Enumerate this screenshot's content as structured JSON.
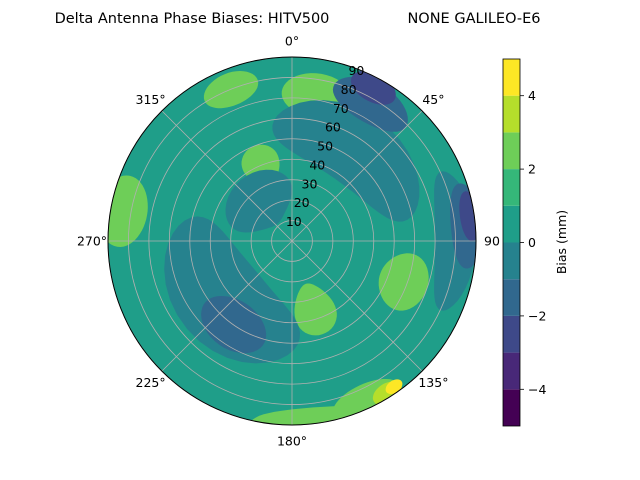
{
  "chart_data": {
    "type": "polar-contour",
    "title_left": "Delta Antenna Phase Biases: HITV500",
    "title_right": "NONE GALILEO-E6",
    "angular_ticks": [
      {
        "deg": 0,
        "label": "0°"
      },
      {
        "deg": 45,
        "label": "45°"
      },
      {
        "deg": 90,
        "label": "90"
      },
      {
        "deg": 135,
        "label": "135°"
      },
      {
        "deg": 180,
        "label": "180°"
      },
      {
        "deg": 225,
        "label": "225°"
      },
      {
        "deg": 270,
        "label": "270°"
      },
      {
        "deg": 315,
        "label": "315°"
      }
    ],
    "radial_ticks": [
      10,
      20,
      30,
      40,
      50,
      60,
      70,
      80,
      90
    ],
    "radial_range": [
      0,
      90
    ],
    "colorbar": {
      "label": "Bias (mm)",
      "ticks": [
        -4,
        -2,
        0,
        2,
        4
      ],
      "range": [
        -5,
        5
      ],
      "levels": [
        -5,
        -4,
        -3,
        -2,
        -1,
        0,
        1,
        2,
        3,
        4,
        5
      ],
      "colors": [
        "#440154",
        "#482878",
        "#3e4989",
        "#31688e",
        "#26828e",
        "#1f9e89",
        "#35b779",
        "#6ece58",
        "#b5de2b",
        "#fde725"
      ]
    },
    "regions": [
      {
        "level": 2,
        "az": 10,
        "r": 72,
        "ra": 14,
        "rr": 11
      },
      {
        "level": 2,
        "az": 338,
        "r": 80,
        "ra": 10,
        "rr": 8
      },
      {
        "level": 2,
        "az": 280,
        "r": 84,
        "ra": 12,
        "rr": 12
      },
      {
        "level": 2,
        "az": 338,
        "r": 40,
        "ra": 13,
        "rr": 10
      },
      {
        "level": 2,
        "az": 162,
        "r": 35,
        "ra": 16,
        "rr": 13
      },
      {
        "level": 2,
        "az": 110,
        "r": 58,
        "ra": 14,
        "rr": 12
      },
      {
        "level": 2,
        "az": 155,
        "r": 88,
        "ra": 12,
        "rr": 10
      },
      {
        "level": 2,
        "az": 175,
        "r": 92,
        "ra": 18,
        "rr": 10
      },
      {
        "level": 3,
        "az": 148,
        "r": 88,
        "ra": 5,
        "rr": 5
      },
      {
        "level": 4,
        "az": 145,
        "r": 87,
        "ra": 3,
        "rr": 3
      },
      {
        "level": -1,
        "az": 35,
        "r": 55,
        "ra": 45,
        "rr": 18
      },
      {
        "level": -1,
        "az": 230,
        "r": 45,
        "ra": 55,
        "rr": 22
      },
      {
        "level": -1,
        "az": 90,
        "r": 80,
        "ra": 25,
        "rr": 10
      },
      {
        "level": -1,
        "az": 320,
        "r": 25,
        "ra": 40,
        "rr": 14
      },
      {
        "level": -2,
        "az": 30,
        "r": 78,
        "ra": 15,
        "rr": 10
      },
      {
        "level": -2,
        "az": 85,
        "r": 86,
        "ra": 14,
        "rr": 8
      },
      {
        "level": -2,
        "az": 215,
        "r": 50,
        "ra": 20,
        "rr": 12
      },
      {
        "level": -3,
        "az": 28,
        "r": 85,
        "ra": 8,
        "rr": 7
      },
      {
        "level": -3,
        "az": 82,
        "r": 88,
        "ra": 8,
        "rr": 5
      }
    ]
  }
}
